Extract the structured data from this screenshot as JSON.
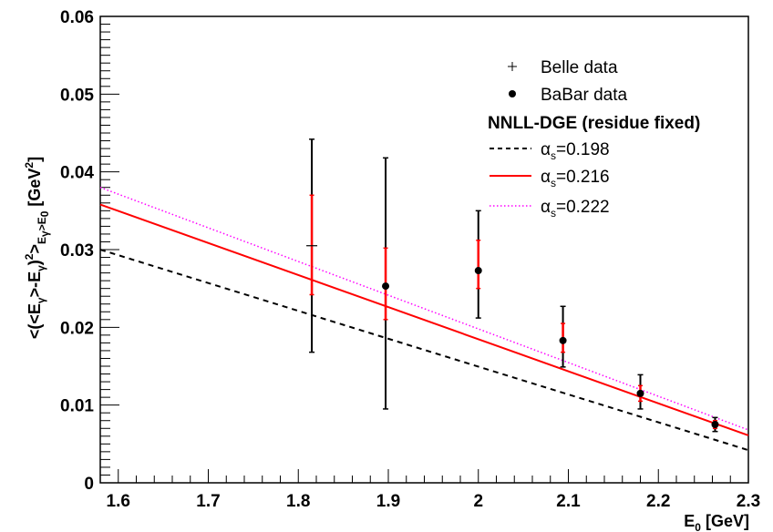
{
  "chart_data": {
    "type": "scatter",
    "x_range": [
      1.58,
      2.3
    ],
    "ylim": [
      0,
      0.06
    ],
    "x_ticks": [
      1.6,
      1.7,
      1.8,
      1.9,
      2.0,
      2.1,
      2.2,
      2.3
    ],
    "x_tick_labels": [
      "1.6",
      "1.7",
      "1.8",
      "1.9",
      "2",
      "2.1",
      "2.2",
      "2.3"
    ],
    "y_ticks": [
      0,
      0.01,
      0.02,
      0.03,
      0.04,
      0.05,
      0.06
    ],
    "y_tick_labels": [
      "0",
      "0.01",
      "0.02",
      "0.03",
      "0.04",
      "0.05",
      "0.06"
    ],
    "xlabel": {
      "main": "E",
      "sub": "0",
      "rest": " [GeV]"
    },
    "ylabel": {
      "p1": "<(<E",
      "s1": "γ",
      "p2": ">-E",
      "s2": "γ",
      "p3": ")",
      "sup": "2",
      "p4": ">",
      "s3": "E",
      "s3sub": "γ",
      "s3rest": ">E",
      "s3sub2": "0",
      "p5": " [GeV",
      "sup2": "2",
      "p6": "]"
    },
    "legend_placement": "top-right",
    "legend": {
      "belle": "Belle data",
      "babar": "BaBar data",
      "header": "NNLL-DGE (residue fixed)",
      "curve_prefix": "α",
      "curve_sub": "s",
      "curves": [
        "=0.198",
        "=0.216",
        "=0.222"
      ]
    },
    "series": [
      {
        "name": "α_s=0.198",
        "color": "#000000",
        "style": "dashed",
        "x": [
          1.58,
          2.3
        ],
        "y": [
          0.03,
          0.0042
        ]
      },
      {
        "name": "α_s=0.216",
        "color": "#ff0000",
        "style": "solid",
        "x": [
          1.58,
          2.3
        ],
        "y": [
          0.0358,
          0.0061
        ]
      },
      {
        "name": "α_s=0.222",
        "color": "#ff00ff",
        "style": "dotted",
        "x": [
          1.58,
          2.3
        ],
        "y": [
          0.038,
          0.0068
        ]
      }
    ],
    "belle_points": [
      {
        "x": 1.815,
        "y": 0.0305,
        "y_low": 0.0168,
        "y_high": 0.0442
      }
    ],
    "babar_points": [
      {
        "x": 1.897,
        "y": 0.0253,
        "y_low": 0.0095,
        "y_high": 0.0418,
        "stat_low": 0.021,
        "stat_high": 0.0302
      },
      {
        "x": 2.0,
        "y": 0.0273,
        "y_low": 0.0212,
        "y_high": 0.035,
        "stat_low": 0.025,
        "stat_high": 0.0312
      },
      {
        "x": 2.094,
        "y": 0.0183,
        "y_low": 0.0149,
        "y_high": 0.0227,
        "stat_low": 0.0168,
        "stat_high": 0.0205
      },
      {
        "x": 2.18,
        "y": 0.0115,
        "y_low": 0.0095,
        "y_high": 0.0139,
        "stat_low": 0.0105,
        "stat_high": 0.0125
      },
      {
        "x": 2.263,
        "y": 0.0075,
        "y_low": 0.0066,
        "y_high": 0.0084,
        "stat_low": 0.007,
        "stat_high": 0.008
      }
    ],
    "belle_stat": {
      "x": 1.815,
      "low": 0.0242,
      "high": 0.037
    },
    "colors": {
      "data": "#000000",
      "stat_error": "#ff0000"
    },
    "grid": false
  }
}
